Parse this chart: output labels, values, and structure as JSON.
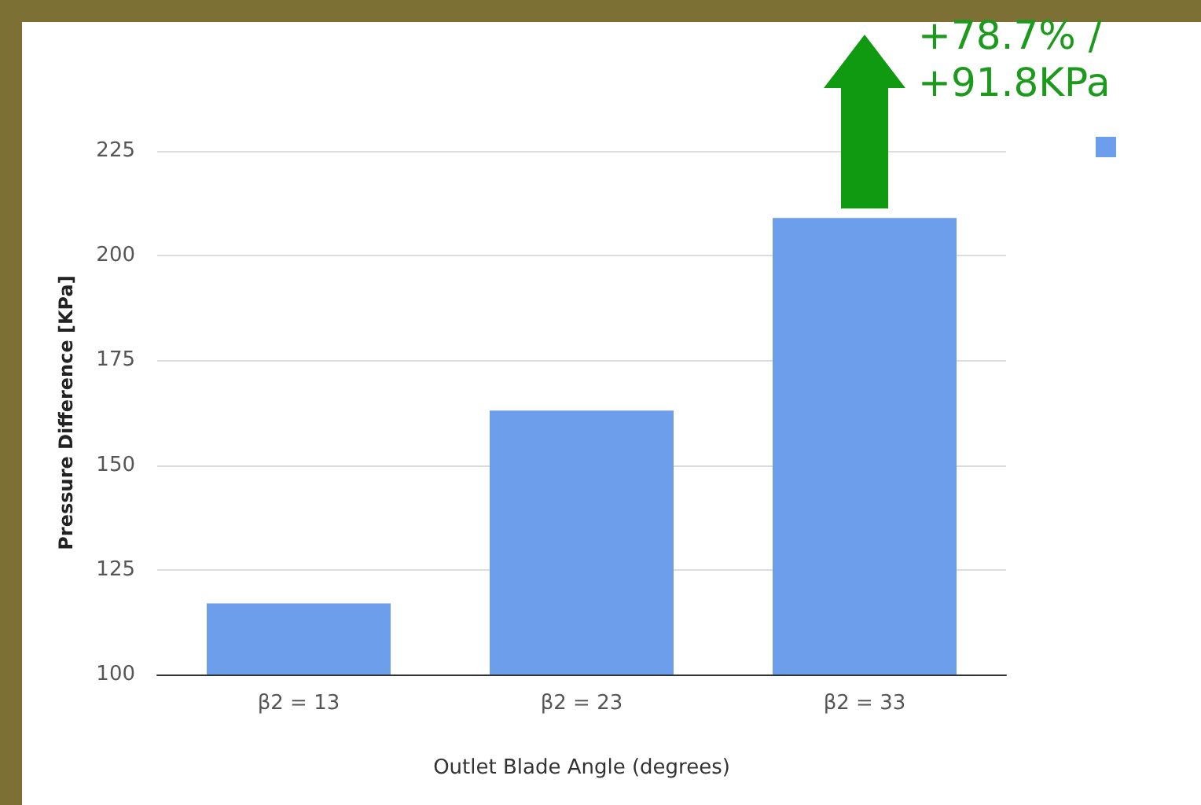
{
  "chart_data": {
    "type": "bar",
    "xlabel": "Outlet Blade Angle (degrees)",
    "ylabel": "Pressure Difference [KPa]",
    "categories": [
      "β2 = 13",
      "β2 = 23",
      "β2 = 33"
    ],
    "values": [
      117,
      163,
      209
    ],
    "color": "#6d9eeb",
    "ylim": [
      100,
      225
    ],
    "yticks": [
      100,
      125,
      150,
      175,
      200,
      225
    ],
    "grid": "y",
    "annotations": [
      "+78.7% / +91.8KPa"
    ]
  }
}
